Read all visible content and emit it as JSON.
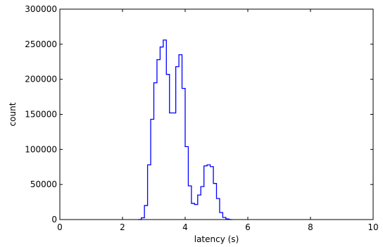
{
  "chart_data": {
    "type": "histogram",
    "title": "",
    "xlabel": "latency (s)",
    "ylabel": "count",
    "xlim": [
      0,
      10
    ],
    "ylim": [
      0,
      300000
    ],
    "grid": false,
    "legend": "none",
    "x_ticks": [
      0,
      2,
      4,
      6,
      8,
      10
    ],
    "x_tick_labels": [
      "0",
      "2",
      "4",
      "6",
      "8",
      "10"
    ],
    "y_ticks": [
      0,
      50000,
      100000,
      150000,
      200000,
      250000,
      300000
    ],
    "y_tick_labels": [
      "0",
      "50000",
      "100000",
      "150000",
      "200000",
      "250000",
      "300000"
    ],
    "line_color": "#0000ff",
    "series": [
      {
        "bins": [
          2.5,
          2.6,
          2.7,
          2.8,
          2.9,
          3.0,
          3.1,
          3.2,
          3.3,
          3.4,
          3.5,
          3.6,
          3.7,
          3.8,
          3.9,
          4.0,
          4.1,
          4.2,
          4.3,
          4.4,
          4.5,
          4.6,
          4.7,
          4.8,
          4.9,
          5.0,
          5.1,
          5.2,
          5.3,
          5.4,
          5.5
        ],
        "values": [
          0,
          2500,
          20000,
          78000,
          143000,
          195000,
          228000,
          246000,
          256000,
          207000,
          152000,
          152000,
          218000,
          235000,
          187000,
          104000,
          48000,
          23000,
          21500,
          35000,
          47000,
          76500,
          78000,
          75500,
          51500,
          30000,
          10000,
          3000,
          800,
          0
        ]
      }
    ]
  }
}
